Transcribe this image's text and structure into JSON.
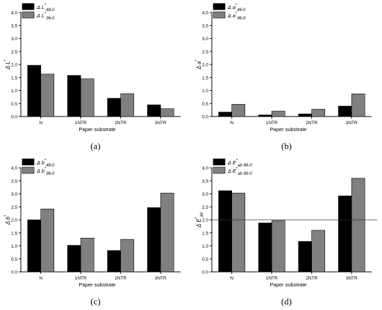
{
  "colors": {
    "series1": "#000000",
    "series2": "#808080",
    "axis": "#000000"
  },
  "chart_data": [
    {
      "type": "bar",
      "caption": "(a)",
      "ylabel": "Δ L*",
      "xlabel": "Paper substrate",
      "categories": [
        "N",
        "1NTR",
        "2NTR",
        "3NTR"
      ],
      "ylim": [
        0,
        4.0
      ],
      "yticks": [
        "0.0",
        "0.5",
        "1.0",
        "1.5",
        "2.0",
        "2.5",
        "3.0",
        "3.5",
        "4.0"
      ],
      "legend": "top-left",
      "reference_line": null,
      "series": [
        {
          "name": "Δ L*48-0",
          "values": [
            1.97,
            1.58,
            0.7,
            0.45
          ]
        },
        {
          "name": "Δ L*96-0",
          "values": [
            1.63,
            1.45,
            0.88,
            0.3
          ]
        }
      ]
    },
    {
      "type": "bar",
      "caption": "(b)",
      "ylabel": "Δ a*",
      "xlabel": "Paper substrate",
      "categories": [
        "N",
        "1NTR",
        "2NTR",
        "3NTR"
      ],
      "ylim": [
        0,
        4.0
      ],
      "yticks": [
        "0.0",
        "0.5",
        "1.0",
        "1.5",
        "2.0",
        "2.5",
        "3.0",
        "3.5",
        "4.0"
      ],
      "legend": "top-left",
      "reference_line": null,
      "series": [
        {
          "name": "Δ a*48-0",
          "values": [
            0.17,
            0.06,
            0.1,
            0.4
          ]
        },
        {
          "name": "Δ a*96-0",
          "values": [
            0.47,
            0.21,
            0.28,
            0.87
          ]
        }
      ]
    },
    {
      "type": "bar",
      "caption": "(c)",
      "ylabel": "Δ b*",
      "xlabel": "Paper substrate",
      "categories": [
        "N",
        "1NTR",
        "2NTR",
        "3NTR"
      ],
      "ylim": [
        0,
        4.0
      ],
      "yticks": [
        "0.0",
        "0.5",
        "1.0",
        "1.5",
        "2.0",
        "2.5",
        "3.0",
        "3.5",
        "4.0"
      ],
      "legend": "top-left",
      "reference_line": null,
      "series": [
        {
          "name": "Δ b*48-0",
          "values": [
            2.0,
            1.02,
            0.82,
            2.47
          ]
        },
        {
          "name": "Δ b*96-0",
          "values": [
            2.42,
            1.3,
            1.25,
            3.03
          ]
        }
      ]
    },
    {
      "type": "bar",
      "caption": "(d)",
      "ylabel": "Δ E*ab",
      "xlabel": "Paper substrate",
      "categories": [
        "N",
        "1NTR",
        "2NTR",
        "3NTR"
      ],
      "ylim": [
        0,
        4.0
      ],
      "yticks": [
        "0.0",
        "0.5",
        "1.0",
        "1.5",
        "2.0",
        "2.5",
        "3.0",
        "3.5",
        "4.0"
      ],
      "legend": "top-left",
      "reference_line": 2.0,
      "series": [
        {
          "name": "Δ E*ab 48-0",
          "values": [
            3.12,
            1.88,
            1.17,
            2.92
          ]
        },
        {
          "name": "Δ E*ab 96-0",
          "values": [
            3.03,
            1.97,
            1.6,
            3.6
          ]
        }
      ]
    }
  ]
}
